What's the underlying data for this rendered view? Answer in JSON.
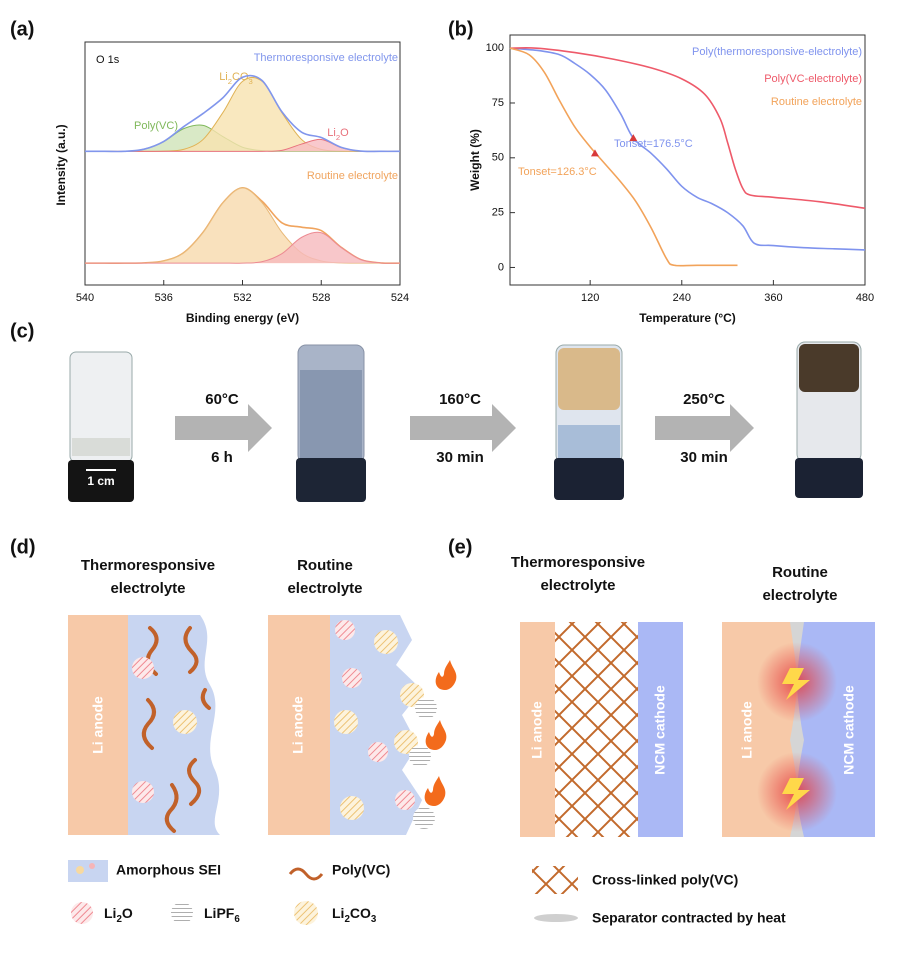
{
  "panel_labels": [
    "(a)",
    "(b)",
    "(c)",
    "(d)",
    "(e)"
  ],
  "chart_data": [
    {
      "type": "line",
      "x_label": "Binding energy (eV)",
      "y_label": "Intensity (a.u.)",
      "annotations": [
        {
          "text": "O 1s"
        }
      ],
      "x": [
        540,
        539,
        538,
        537,
        536,
        535,
        534,
        533,
        532,
        531,
        530,
        529,
        528,
        527,
        526,
        525,
        524
      ],
      "xlim": [
        540,
        524
      ],
      "xticks": [
        540,
        536,
        532,
        528,
        524
      ],
      "ylim": [
        0,
        100
      ],
      "series": [
        {
          "name": "Poly(VC)",
          "color": "#7fb85a",
          "fill": "#cfe3b8",
          "values": [
            55,
            55,
            55,
            55.9,
            59,
            64.3,
            65.7,
            61.1,
            56.7,
            55.3,
            55,
            55,
            55,
            55,
            55,
            55,
            55
          ]
        },
        {
          "name": "Li2CO3",
          "color": "#e0b254",
          "fill": "#f8e2af",
          "values": [
            55,
            55,
            55,
            55,
            55.1,
            55.8,
            59.9,
            70.9,
            83.8,
            83.8,
            70.9,
            59.9,
            55.8,
            55.1,
            55,
            55,
            55
          ]
        },
        {
          "name": "Li2O",
          "color": "#e8727c",
          "fill": "#f7bcc0",
          "values": [
            55,
            55,
            55,
            55,
            55,
            55,
            55,
            55,
            55,
            55,
            55.4,
            58,
            59.9,
            56.6,
            55.1,
            55,
            55
          ]
        },
        {
          "name": "Thermoresponsive electrolyte",
          "color": "#8196ec",
          "values": [
            55,
            55,
            55,
            55.9,
            59.1,
            65.1,
            70.6,
            77,
            85.5,
            84.1,
            71.3,
            62.9,
            60.7,
            56.7,
            55.1,
            55,
            55
          ]
        },
        {
          "name": "Routine electrolyte",
          "color": "#f0a45e",
          "values": [
            9,
            9,
            9,
            9.1,
            9.9,
            13.2,
            21.7,
            33.8,
            40,
            34.4,
            25.6,
            23.8,
            22.4,
            15.6,
            10.5,
            9.1,
            9
          ]
        },
        {
          "color": "#e8b978",
          "fill": "#f7d9ad",
          "values": [
            9,
            9,
            9,
            9.1,
            9.9,
            13.2,
            21.7,
            33.8,
            40,
            33.8,
            21.7,
            13.2,
            9.9,
            9.1,
            9,
            9,
            9
          ]
        },
        {
          "color": "#ec8a92",
          "fill": "#f6b9bd",
          "values": [
            9,
            9,
            9,
            9,
            9,
            9,
            9,
            9,
            9,
            9.6,
            12.9,
            19.6,
            21.5,
            15.5,
            10.5,
            9.1,
            9
          ]
        }
      ]
    },
    {
      "type": "line",
      "x_label": "Temperature (°C)",
      "y_label": "Weight (%)",
      "xlim": [
        15,
        480
      ],
      "xticks": [
        120,
        240,
        360,
        480
      ],
      "ylim": [
        -8,
        106
      ],
      "yticks": [
        0,
        25,
        50,
        75,
        100
      ],
      "series": [
        {
          "name": "Poly(thermoresponsive-electrolyte)",
          "color": "#7f93ee",
          "x": [
            15,
            50,
            80,
            100,
            120,
            140,
            160,
            176.5,
            200,
            220,
            240,
            260,
            280,
            300,
            320,
            335,
            360,
            400,
            440,
            480
          ],
          "values": [
            100,
            99,
            97,
            93,
            88,
            81,
            70,
            59,
            52,
            45,
            37,
            32,
            29,
            25,
            19,
            11,
            10,
            9,
            8.5,
            8
          ]
        },
        {
          "name": "Poly(VC-electrolyte)",
          "color": "#ee5a6a",
          "x": [
            15,
            50,
            100,
            150,
            200,
            240,
            270,
            290,
            300,
            310,
            320,
            330,
            360,
            420,
            480
          ],
          "values": [
            100,
            100,
            98,
            95,
            91,
            86,
            79,
            68,
            57,
            45,
            36,
            33,
            32,
            30,
            27
          ]
        },
        {
          "name": "Routine electrolyte",
          "color": "#f2a35a",
          "x": [
            15,
            40,
            60,
            80,
            100,
            120,
            140,
            160,
            180,
            200,
            220,
            230,
            260,
            313
          ],
          "values": [
            100,
            97,
            89,
            76,
            64,
            55,
            47,
            39,
            30,
            18,
            4,
            1,
            1,
            1
          ]
        }
      ],
      "annotations": [
        {
          "text": "Tonset=176.5°C",
          "x": 176.5,
          "y": 59,
          "color": "#7f93ee",
          "marker_color": "#d83a3a"
        },
        {
          "text": "Tonset=126.3°C",
          "x": 126.3,
          "y": 52,
          "color": "#f2a35a",
          "marker_color": "#d83a3a"
        }
      ]
    }
  ],
  "panel_c": {
    "steps": [
      {
        "temperature": "60°C",
        "duration": "6 h"
      },
      {
        "temperature": "160°C",
        "duration": "30 min"
      },
      {
        "temperature": "250°C",
        "duration": "30 min"
      }
    ],
    "scale_bar": "1 cm"
  },
  "panel_d": {
    "titles": [
      [
        "Thermoresponsive",
        "electrolyte"
      ],
      [
        "Routine",
        "electrolyte"
      ]
    ],
    "anode_label": "Li anode",
    "legend": [
      "Amorphous SEI",
      "Poly(VC)",
      "Li2O",
      "LiPF6",
      "Li2CO3"
    ]
  },
  "panel_e": {
    "titles": [
      [
        "Thermoresponsive",
        "electrolyte"
      ],
      [
        "Routine",
        "electrolyte"
      ]
    ],
    "anode_label": "Li anode",
    "cathode_label": "NCM cathode",
    "legend": [
      "Cross-linked poly(VC)",
      "Separator contracted by heat"
    ]
  }
}
